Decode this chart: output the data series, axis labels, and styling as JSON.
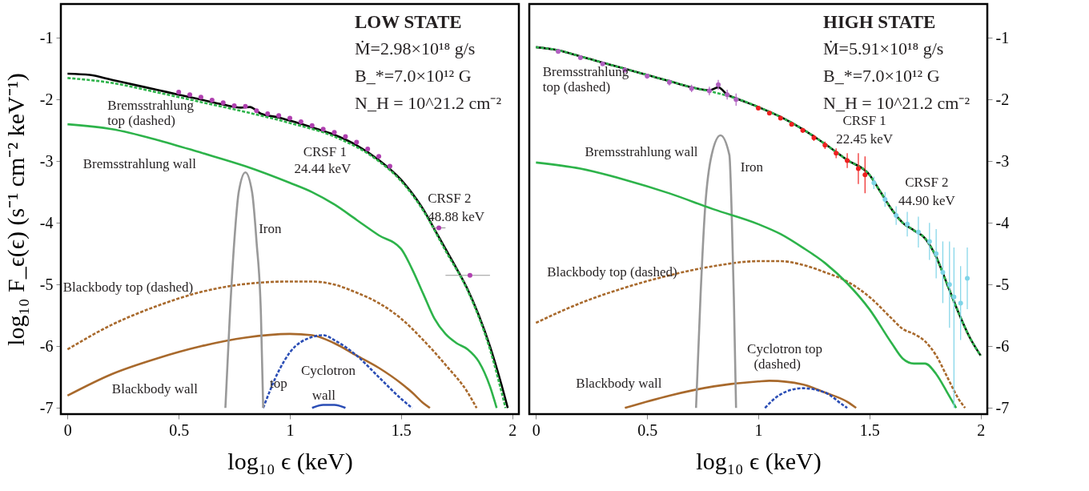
{
  "chart_data": [
    {
      "type": "line",
      "title": "LOW STATE",
      "xlabel": "log₁₀ ϵ (keV)",
      "ylabel": "log₁₀ F_ϵ(ϵ) (s⁻¹ cm⁻² keV⁻¹)",
      "xlim": [
        -0.03,
        2.03
      ],
      "ylim": [
        -7.1,
        -0.45
      ],
      "xticks": [
        0,
        0.5,
        1,
        1.5,
        2
      ],
      "yticks": [
        -7,
        -6,
        -5,
        -4,
        -3,
        -2,
        -1
      ],
      "grid": false,
      "series": [
        {
          "line_style": "solid",
          "color": "#a8692c",
          "x": [
            0,
            0.2,
            0.4,
            0.6,
            0.8,
            1.0,
            1.1,
            1.2,
            1.3,
            1.4,
            1.5,
            1.55,
            1.6,
            1.63
          ],
          "values": [
            -6.8,
            -6.45,
            -6.2,
            -6.0,
            -5.86,
            -5.8,
            -5.82,
            -5.95,
            -6.15,
            -6.35,
            -6.6,
            -6.75,
            -6.92,
            -7.0
          ]
        },
        {
          "line_style": "dashed",
          "color": "#a8692c",
          "x": [
            0,
            0.2,
            0.4,
            0.6,
            0.8,
            1.0,
            1.1,
            1.2,
            1.3,
            1.4,
            1.5,
            1.6,
            1.7,
            1.8,
            1.84
          ],
          "values": [
            -6.05,
            -5.65,
            -5.35,
            -5.12,
            -4.99,
            -4.95,
            -4.95,
            -5.0,
            -5.13,
            -5.3,
            -5.55,
            -5.9,
            -6.3,
            -6.75,
            -7.0
          ]
        },
        {
          "line_style": "dashed",
          "color": "#2a4db5",
          "x": [
            0.88,
            0.95,
            1.0,
            1.1,
            1.15,
            1.2,
            1.3,
            1.4,
            1.5,
            1.55
          ],
          "values": [
            -7.0,
            -6.4,
            -6.1,
            -5.85,
            -5.82,
            -5.9,
            -6.15,
            -6.5,
            -6.85,
            -7.0
          ]
        },
        {
          "line_style": "solid",
          "color": "#2a4db5",
          "x": [
            1.1,
            1.15,
            1.2,
            1.25
          ],
          "values": [
            -7.0,
            -6.95,
            -6.95,
            -7.0
          ]
        },
        {
          "line_style": "solid",
          "color": "#999999",
          "x": [
            0.71,
            0.73,
            0.75,
            0.77,
            0.8,
            0.83,
            0.85,
            0.87,
            0.88
          ],
          "values": [
            -7.0,
            -5.5,
            -4.3,
            -3.5,
            -3.18,
            -3.5,
            -4.3,
            -5.5,
            -7.0
          ]
        },
        {
          "line_style": "solid",
          "color": "#2db34a",
          "x": [
            0,
            0.2,
            0.4,
            0.6,
            0.8,
            1.0,
            1.1,
            1.2,
            1.3,
            1.4,
            1.5,
            1.55,
            1.6,
            1.65,
            1.7,
            1.75,
            1.8,
            1.85,
            1.9,
            1.93
          ],
          "values": [
            -2.4,
            -2.48,
            -2.65,
            -2.86,
            -3.08,
            -3.35,
            -3.5,
            -3.7,
            -3.95,
            -4.2,
            -4.42,
            -4.75,
            -5.15,
            -5.55,
            -5.8,
            -5.95,
            -6.05,
            -6.25,
            -6.65,
            -7.0
          ]
        },
        {
          "line_style": "solid",
          "color": "#000000",
          "x": [
            0,
            0.1,
            0.2,
            0.3,
            0.4,
            0.5,
            0.6,
            0.7,
            0.78,
            0.82,
            0.87,
            0.95,
            1.0,
            1.1,
            1.2,
            1.3,
            1.4,
            1.5,
            1.55,
            1.6,
            1.65,
            1.7,
            1.75,
            1.8,
            1.85,
            1.9,
            1.95,
            1.98
          ],
          "values": [
            -1.58,
            -1.6,
            -1.68,
            -1.76,
            -1.84,
            -1.92,
            -2.0,
            -2.08,
            -2.13,
            -2.12,
            -2.23,
            -2.29,
            -2.34,
            -2.45,
            -2.57,
            -2.74,
            -2.98,
            -3.3,
            -3.52,
            -3.78,
            -4.1,
            -4.42,
            -4.74,
            -5.08,
            -5.5,
            -6.0,
            -6.6,
            -7.0
          ]
        },
        {
          "line_style": "dashed",
          "color": "#2db34a",
          "x": [
            0,
            0.2,
            0.4,
            0.6,
            0.8,
            1.0,
            1.2,
            1.4,
            1.5,
            1.6,
            1.7,
            1.8,
            1.9,
            1.97
          ],
          "values": [
            -1.65,
            -1.73,
            -1.88,
            -2.04,
            -2.2,
            -2.38,
            -2.6,
            -3.0,
            -3.32,
            -3.8,
            -4.45,
            -5.1,
            -6.05,
            -7.0
          ]
        },
        {
          "type": "scatter",
          "marker": "circle",
          "color": "#b040b0",
          "x": [
            0.5,
            0.55,
            0.6,
            0.65,
            0.7,
            0.75,
            0.8,
            0.85,
            0.9,
            0.95,
            1.0,
            1.05,
            1.1,
            1.15,
            1.2,
            1.25,
            1.3,
            1.35,
            1.4,
            1.45,
            1.67,
            1.81
          ],
          "values": [
            -1.88,
            -1.92,
            -1.96,
            -2.01,
            -2.05,
            -2.1,
            -2.11,
            -2.18,
            -2.23,
            -2.26,
            -2.3,
            -2.36,
            -2.42,
            -2.48,
            -2.53,
            -2.6,
            -2.69,
            -2.8,
            -2.92,
            -3.08,
            -4.08,
            -4.85
          ],
          "xerrors": [
            null,
            null,
            null,
            null,
            null,
            null,
            null,
            null,
            null,
            null,
            null,
            null,
            null,
            null,
            null,
            null,
            null,
            null,
            null,
            null,
            [
              1.64,
              1.7
            ],
            [
              1.7,
              1.9
            ]
          ]
        }
      ],
      "annotations": [
        "Ṁ=2.98×10¹⁸ g/s",
        "B_*=7.0×10¹² G",
        "N_H = 10^21.2 cm⁻²",
        "Bremsstrahlung",
        "top (dashed)",
        "Bremsstrahlung wall",
        "Iron",
        "CRSF 1",
        "24.44 keV",
        "CRSF 2",
        "48.88 keV",
        "Blackbody top (dashed)",
        "Blackbody wall",
        "Cyclotron",
        "top",
        "wall"
      ]
    },
    {
      "type": "line",
      "title": "HIGH STATE",
      "xlabel": "log₁₀ ϵ (keV)",
      "xlim": [
        -0.03,
        2.03
      ],
      "ylim": [
        -7.1,
        -0.45
      ],
      "xticks": [
        0,
        0.5,
        1,
        1.5,
        2
      ],
      "yticks": [
        -7,
        -6,
        -5,
        -4,
        -3,
        -2,
        -1
      ],
      "grid": false,
      "series": [
        {
          "line_style": "solid",
          "color": "#a8692c",
          "x": [
            0.4,
            0.6,
            0.8,
            1.0,
            1.05,
            1.2,
            1.3,
            1.4,
            1.44
          ],
          "values": [
            -7.0,
            -6.8,
            -6.65,
            -6.57,
            -6.56,
            -6.62,
            -6.75,
            -6.9,
            -7.0
          ]
        },
        {
          "line_style": "dashed",
          "color": "#a8692c",
          "x": [
            0,
            0.2,
            0.4,
            0.6,
            0.8,
            1.0,
            1.1,
            1.2,
            1.3,
            1.4,
            1.5,
            1.6,
            1.65,
            1.7,
            1.75,
            1.8,
            1.85,
            1.9,
            1.93
          ],
          "values": [
            -5.62,
            -5.3,
            -5.05,
            -4.85,
            -4.7,
            -4.62,
            -4.62,
            -4.68,
            -4.8,
            -4.95,
            -5.2,
            -5.55,
            -5.72,
            -5.8,
            -5.92,
            -6.15,
            -6.5,
            -6.85,
            -7.0
          ]
        },
        {
          "line_style": "dashed",
          "color": "#2a4db5",
          "x": [
            1.03,
            1.1,
            1.2,
            1.3,
            1.38,
            1.4
          ],
          "values": [
            -7.0,
            -6.78,
            -6.68,
            -6.75,
            -6.95,
            -7.0
          ]
        },
        {
          "line_style": "solid",
          "color": "#999999",
          "x": [
            0.72,
            0.74,
            0.76,
            0.79,
            0.83,
            0.87,
            0.88,
            0.89,
            0.9
          ],
          "values": [
            -7.0,
            -5.2,
            -3.8,
            -2.9,
            -2.58,
            -2.9,
            -3.8,
            -5.2,
            -7.0
          ]
        },
        {
          "line_style": "solid",
          "color": "#2db34a",
          "x": [
            0,
            0.2,
            0.4,
            0.6,
            0.8,
            1.0,
            1.1,
            1.2,
            1.3,
            1.4,
            1.5,
            1.6,
            1.65,
            1.7,
            1.75,
            1.8,
            1.85,
            1.89
          ],
          "values": [
            -3.02,
            -3.12,
            -3.3,
            -3.52,
            -3.78,
            -4.02,
            -4.18,
            -4.4,
            -4.65,
            -4.98,
            -5.4,
            -5.95,
            -6.2,
            -6.28,
            -6.28,
            -6.45,
            -6.75,
            -7.0
          ]
        },
        {
          "line_style": "solid",
          "color": "#000000",
          "x": [
            0,
            0.1,
            0.2,
            0.3,
            0.4,
            0.5,
            0.6,
            0.7,
            0.78,
            0.82,
            0.86,
            0.9,
            1.0,
            1.1,
            1.2,
            1.3,
            1.4,
            1.5,
            1.55,
            1.6,
            1.65,
            1.7,
            1.75,
            1.8,
            1.85,
            1.9,
            1.95,
            2.0
          ],
          "values": [
            -1.15,
            -1.2,
            -1.3,
            -1.4,
            -1.5,
            -1.6,
            -1.7,
            -1.8,
            -1.85,
            -1.8,
            -1.92,
            -1.98,
            -2.12,
            -2.28,
            -2.48,
            -2.72,
            -2.98,
            -3.22,
            -3.5,
            -3.78,
            -4.0,
            -4.12,
            -4.25,
            -4.55,
            -5.0,
            -5.45,
            -5.85,
            -6.15
          ]
        },
        {
          "line_style": "dashed",
          "color": "#2db34a",
          "x": [
            0,
            0.1,
            0.2,
            0.3,
            0.4,
            0.5,
            0.6,
            0.7,
            0.8,
            0.9,
            1.0,
            1.1,
            1.2,
            1.3,
            1.4,
            1.5,
            1.55,
            1.6,
            1.65,
            1.7,
            1.75,
            1.8,
            1.85,
            1.9,
            1.95,
            2.0
          ],
          "values": [
            -1.15,
            -1.2,
            -1.3,
            -1.4,
            -1.5,
            -1.6,
            -1.7,
            -1.8,
            -1.88,
            -1.98,
            -2.12,
            -2.28,
            -2.48,
            -2.72,
            -2.98,
            -3.22,
            -3.5,
            -3.78,
            -4.0,
            -4.12,
            -4.25,
            -4.55,
            -5.0,
            -5.45,
            -5.85,
            -6.15
          ]
        },
        {
          "type": "scatter",
          "marker": "circle",
          "color": "#b060c0",
          "x": [
            0.1,
            0.2,
            0.3,
            0.4,
            0.5,
            0.6,
            0.7,
            0.78,
            0.82,
            0.86,
            0.9
          ],
          "values": [
            -1.22,
            -1.32,
            -1.42,
            -1.52,
            -1.62,
            -1.72,
            -1.82,
            -1.86,
            -1.76,
            -1.92,
            -2.0
          ],
          "errors": [
            0.03,
            0.03,
            0.03,
            0.04,
            0.04,
            0.05,
            0.06,
            0.07,
            0.08,
            0.08,
            0.1
          ]
        },
        {
          "type": "scatter",
          "marker": "circle",
          "color": "#ee2020",
          "x": [
            1.0,
            1.05,
            1.1,
            1.15,
            1.2,
            1.25,
            1.3,
            1.35,
            1.4,
            1.45,
            1.48
          ],
          "values": [
            -2.14,
            -2.22,
            -2.3,
            -2.4,
            -2.5,
            -2.62,
            -2.74,
            -2.87,
            -2.99,
            -3.12,
            -3.22
          ],
          "errors": [
            0.02,
            0.02,
            0.03,
            0.03,
            0.04,
            0.05,
            0.06,
            0.08,
            0.12,
            0.25,
            0.3
          ]
        },
        {
          "type": "scatter",
          "marker": "circle",
          "color": "#7fd4e8",
          "x": [
            1.52,
            1.57,
            1.62,
            1.67,
            1.72,
            1.77,
            1.8,
            1.83,
            1.86,
            1.88,
            1.91,
            1.94
          ],
          "values": [
            -3.35,
            -3.62,
            -3.88,
            -4.02,
            -4.15,
            -4.3,
            -4.5,
            -4.8,
            -5.0,
            -5.2,
            -5.3,
            -4.9
          ],
          "errors": [
            0.1,
            0.12,
            0.15,
            0.2,
            0.25,
            0.3,
            0.4,
            0.5,
            0.7,
            [
              -7.0,
              -4.4
            ],
            0.6,
            0.5
          ]
        }
      ],
      "annotations": [
        "Ṁ=5.91×10¹⁸ g/s",
        "B_*=7.0×10¹² G",
        "N_H = 10^21.2 cm⁻²",
        "Bremsstrahlung",
        "top (dashed)",
        "Bremsstrahlung wall",
        "Iron",
        "CRSF 1",
        "22.45 keV",
        "CRSF 2",
        "44.90 keV",
        "Blackbody top (dashed)",
        "Blackbody wall",
        "Cyclotron top",
        "(dashed)"
      ]
    }
  ]
}
